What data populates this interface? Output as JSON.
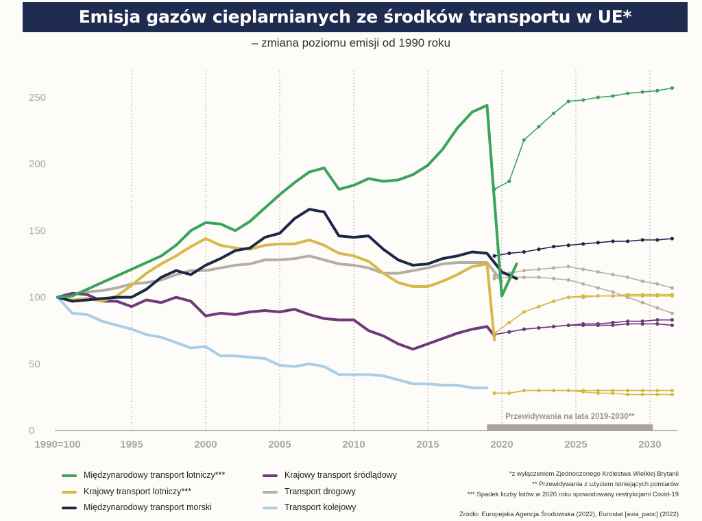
{
  "title": "Emisja gazów cieplarnianych ze środków transportu w UE*",
  "subtitle": "– zmiana poziomu emisji od 1990 roku",
  "forecast_label": "Przewidywania na lata 2019-2030**",
  "notes": [
    "*z wyłączeniem Zjednoczonego Królestwa Wielkiej Brytanii",
    "** Przewidywania z użyciem istniejących pomiarów",
    "*** Spadek liczby lotów w 2020 roku spowodowany restrykcjami Covid-19"
  ],
  "source": "Źródło: Europejska Agencja Środowiska (2022), Eurostat [avia_paoc] (2022)",
  "legend": [
    {
      "label": "Międzynarodowy transport lotniczy***",
      "color": "#3aa35c"
    },
    {
      "label": "Krajowy transport lotniczy***",
      "color": "#d9b84a"
    },
    {
      "label": "Międzynarodowy transport morski",
      "color": "#1c2847"
    },
    {
      "label": "Krajowy transport śródlądowy",
      "color": "#6e3a7c"
    },
    {
      "label": "Transport drogowy",
      "color": "#b5aea6"
    },
    {
      "label": "Transport kolejowy",
      "color": "#a9cfe6"
    }
  ],
  "chart_data": {
    "type": "line",
    "xlim": [
      1990,
      2031.5
    ],
    "ylim": [
      0,
      270
    ],
    "x_ticks": [
      1990,
      1995,
      2000,
      2005,
      2010,
      2015,
      2020,
      2025,
      2030
    ],
    "x_tick_labels": [
      "1990=100",
      "1995",
      "2000",
      "2005",
      "2010",
      "2015",
      "2020",
      "2025",
      "2030"
    ],
    "y_ticks": [
      0,
      50,
      100,
      150,
      200,
      250
    ],
    "y_tick_labels": [
      "0",
      "50",
      "100",
      "150",
      "200",
      "250"
    ],
    "vertical_gridlines": [
      1995,
      2000,
      2005,
      2010,
      2015,
      2020,
      2025,
      2030
    ],
    "forecast_range": [
      2019,
      2030.2
    ],
    "series": [
      {
        "name": "Międzynarodowy transport lotniczy***",
        "color": "#3aa35c",
        "history": {
          "x": [
            1990,
            1991,
            1992,
            1993,
            1994,
            1995,
            1996,
            1997,
            1998,
            1999,
            2000,
            2001,
            2002,
            2003,
            2004,
            2005,
            2006,
            2007,
            2008,
            2009,
            2010,
            2011,
            2012,
            2013,
            2014,
            2015,
            2016,
            2017,
            2018,
            2019,
            2020,
            2021
          ],
          "y": [
            100,
            101,
            106,
            111,
            116,
            121,
            126,
            131,
            139,
            150,
            156,
            155,
            150,
            157,
            167,
            177,
            186,
            194,
            197,
            181,
            184,
            189,
            187,
            188,
            192,
            199,
            211,
            227,
            239,
            244,
            101,
            125
          ]
        },
        "forecast": [
          {
            "x": [
              2019.5,
              2020.5,
              2021.5,
              2022.5,
              2023.5,
              2024.5,
              2025.5,
              2026.5,
              2027.5,
              2028.5,
              2029.5,
              2030.5,
              2031.5
            ],
            "y": [
              181,
              187,
              218,
              228,
              238,
              247,
              248,
              250,
              251,
              253,
              254,
              255,
              257
            ]
          }
        ]
      },
      {
        "name": "Krajowy transport lotniczy***",
        "color": "#d9b84a",
        "history": {
          "x": [
            1990,
            1991,
            1992,
            1993,
            1994,
            1995,
            1996,
            1997,
            1998,
            1999,
            2000,
            2001,
            2002,
            2003,
            2004,
            2005,
            2006,
            2007,
            2008,
            2009,
            2010,
            2011,
            2012,
            2013,
            2014,
            2015,
            2016,
            2017,
            2018,
            2019,
            2019.5
          ],
          "y": [
            100,
            98,
            99,
            97,
            101,
            109,
            118,
            125,
            131,
            138,
            144,
            139,
            137,
            136,
            139,
            140,
            140,
            143,
            139,
            133,
            131,
            127,
            118,
            111,
            108,
            108,
            112,
            117,
            123,
            125,
            68
          ]
        },
        "forecast": [
          {
            "x": [
              2019.5,
              2020.5,
              2021.5,
              2022.5,
              2023.5,
              2024.5,
              2025.5,
              2026.5,
              2027.5,
              2028.5,
              2029.5,
              2030.5,
              2031.5
            ],
            "y": [
              73,
              81,
              89,
              93,
              97,
              100,
              100,
              101,
              101,
              101,
              101,
              101,
              101
            ]
          },
          {
            "x": [
              2019.5,
              2020.5,
              2021.5,
              2022.5,
              2023.5,
              2024.5,
              2025.5,
              2026.5,
              2027.5,
              2028.5,
              2029.5,
              2030.5,
              2031.5
            ],
            "y": [
              73,
              81,
              89,
              93,
              97,
              100,
              101,
              101,
              101,
              102,
              102,
              102,
              102
            ]
          },
          {
            "x": [
              2019.5,
              2020.5,
              2021.5,
              2022.5,
              2023.5,
              2024.5,
              2025.5,
              2026.5,
              2027.5,
              2028.5,
              2029.5,
              2030.5,
              2031.5
            ],
            "y": [
              28,
              28,
              30,
              30,
              30,
              30,
              30,
              30,
              30,
              30,
              30,
              30,
              30
            ]
          },
          {
            "x": [
              2019.5,
              2020.5,
              2021.5,
              2022.5,
              2023.5,
              2024.5,
              2025.5,
              2026.5,
              2027.5,
              2028.5,
              2029.5,
              2030.5,
              2031.5
            ],
            "y": [
              28,
              28,
              30,
              30,
              30,
              30,
              29,
              28,
              28,
              27,
              27,
              27,
              27
            ]
          }
        ]
      },
      {
        "name": "Międzynarodowy transport morski",
        "color": "#1c2847",
        "history": {
          "x": [
            1990,
            1991,
            1992,
            1993,
            1994,
            1995,
            1996,
            1997,
            1998,
            1999,
            2000,
            2001,
            2002,
            2003,
            2004,
            2005,
            2006,
            2007,
            2008,
            2009,
            2010,
            2011,
            2012,
            2013,
            2014,
            2015,
            2016,
            2017,
            2018,
            2019,
            2020,
            2021
          ],
          "y": [
            100,
            97,
            98,
            99,
            100,
            100,
            106,
            115,
            120,
            117,
            124,
            129,
            135,
            137,
            145,
            148,
            159,
            166,
            164,
            146,
            145,
            146,
            136,
            128,
            124,
            125,
            129,
            131,
            134,
            133,
            119,
            114
          ]
        },
        "forecast": [
          {
            "x": [
              2019.5,
              2020.5,
              2021.5,
              2022.5,
              2023.5,
              2024.5,
              2025.5,
              2026.5,
              2027.5,
              2028.5,
              2029.5,
              2030.5,
              2031.5
            ],
            "y": [
              131,
              133,
              134,
              136,
              138,
              139,
              140,
              141,
              142,
              142,
              143,
              143,
              144
            ]
          }
        ]
      },
      {
        "name": "Krajowy transport śródlądowy",
        "color": "#6e3a7c",
        "history": {
          "x": [
            1990,
            1991,
            1992,
            1993,
            1994,
            1995,
            1996,
            1997,
            1998,
            1999,
            2000,
            2001,
            2002,
            2003,
            2004,
            2005,
            2006,
            2007,
            2008,
            2009,
            2010,
            2011,
            2012,
            2013,
            2014,
            2015,
            2016,
            2017,
            2018,
            2019,
            2019.5
          ],
          "y": [
            100,
            103,
            102,
            97,
            97,
            93,
            98,
            96,
            100,
            97,
            86,
            88,
            87,
            89,
            90,
            89,
            91,
            87,
            84,
            83,
            83,
            75,
            71,
            65,
            61,
            65,
            69,
            73,
            76,
            78,
            71
          ]
        },
        "forecast": [
          {
            "x": [
              2019.5,
              2020.5,
              2021.5,
              2022.5,
              2023.5,
              2024.5,
              2025.5,
              2026.5,
              2027.5,
              2028.5,
              2029.5,
              2030.5,
              2031.5
            ],
            "y": [
              72,
              74,
              76,
              77,
              78,
              79,
              80,
              80,
              81,
              82,
              82,
              83,
              83
            ]
          },
          {
            "x": [
              2019.5,
              2020.5,
              2021.5,
              2022.5,
              2023.5,
              2024.5,
              2025.5,
              2026.5,
              2027.5,
              2028.5,
              2029.5,
              2030.5,
              2031.5
            ],
            "y": [
              72,
              74,
              76,
              77,
              78,
              79,
              79,
              79,
              79,
              80,
              80,
              80,
              79
            ]
          }
        ]
      },
      {
        "name": "Transport drogowy",
        "color": "#b5aea6",
        "history": {
          "x": [
            1990,
            1991,
            1992,
            1993,
            1994,
            1995,
            1996,
            1997,
            1998,
            1999,
            2000,
            2001,
            2002,
            2003,
            2004,
            2005,
            2006,
            2007,
            2008,
            2009,
            2010,
            2011,
            2012,
            2013,
            2014,
            2015,
            2016,
            2017,
            2018,
            2019,
            2020
          ],
          "y": [
            100,
            102,
            104,
            105,
            107,
            110,
            111,
            113,
            117,
            120,
            120,
            122,
            124,
            125,
            128,
            128,
            129,
            131,
            128,
            125,
            124,
            122,
            118,
            118,
            120,
            122,
            125,
            126,
            126,
            126,
            112
          ]
        },
        "forecast": [
          {
            "x": [
              2019.5,
              2020.5,
              2021.5,
              2022.5,
              2023.5,
              2024.5,
              2025.5,
              2026.5,
              2027.5,
              2028.5,
              2029.5,
              2030.5,
              2031.5
            ],
            "y": [
              116,
              118,
              120,
              121,
              122,
              123,
              121,
              119,
              117,
              115,
              112,
              110,
              107
            ]
          },
          {
            "x": [
              2019.5,
              2020.5,
              2021.5,
              2022.5,
              2023.5,
              2024.5,
              2025.5,
              2026.5,
              2027.5,
              2028.5,
              2029.5,
              2030.5,
              2031.5
            ],
            "y": [
              114,
              115,
              115,
              115,
              114,
              113,
              110,
              107,
              104,
              100,
              96,
              92,
              88
            ]
          }
        ]
      },
      {
        "name": "Transport kolejowy",
        "color": "#a9cfe6",
        "history": {
          "x": [
            1990,
            1991,
            1992,
            1993,
            1994,
            1995,
            1996,
            1997,
            1998,
            1999,
            2000,
            2001,
            2002,
            2003,
            2004,
            2005,
            2006,
            2007,
            2008,
            2009,
            2010,
            2011,
            2012,
            2013,
            2014,
            2015,
            2016,
            2017,
            2018,
            2019
          ],
          "y": [
            100,
            88,
            87,
            82,
            79,
            76,
            72,
            70,
            66,
            62,
            63,
            56,
            56,
            55,
            54,
            49,
            48,
            50,
            48,
            42,
            42,
            42,
            41,
            38,
            35,
            35,
            34,
            34,
            32,
            32
          ]
        },
        "forecast": []
      }
    ]
  }
}
